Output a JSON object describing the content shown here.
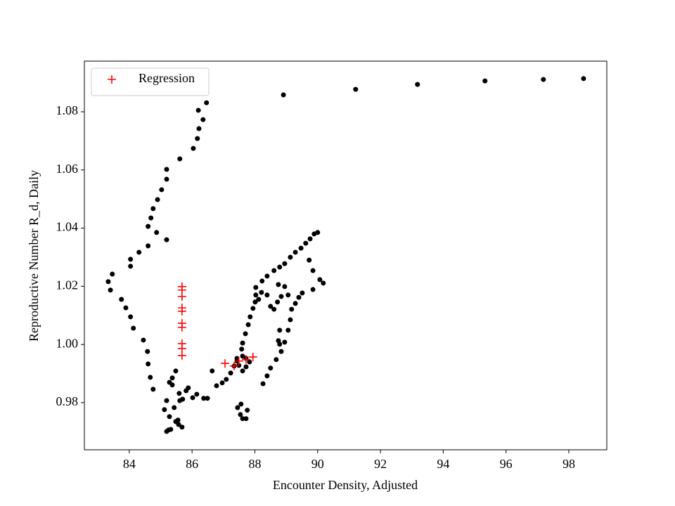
{
  "chart_data": {
    "type": "scatter",
    "xlabel": "Encounter Density, Adjusted",
    "ylabel": "Reproductive Number R_d, Daily",
    "xlim": [
      82.57,
      99.21
    ],
    "ylim": [
      0.9638,
      1.0974
    ],
    "xticks": [
      84,
      86,
      88,
      90,
      92,
      94,
      96,
      98
    ],
    "yticks": [
      0.98,
      {
        "value": 1,
        "label": "1.00"
      },
      1.02,
      1.04,
      1.06,
      1.08
    ],
    "legend": "upper left",
    "series": [
      {
        "color": "#000000",
        "marker": "dot",
        "x": [
          88.91,
          91.21,
          93.18,
          95.33,
          97.19,
          98.47,
          86.46,
          86.2,
          86.35,
          86.22,
          86.17,
          86.04,
          85.61,
          85.19,
          85.19,
          85.03,
          84.9,
          84.76,
          84.69,
          84.6,
          84.87,
          85.19,
          84.6,
          84.31,
          84.04,
          84.04,
          83.46,
          83.33,
          83.4,
          83.75,
          83.89,
          84.04,
          84.13,
          84.45,
          84.58,
          84.6,
          84.67,
          84.76,
          85.12,
          85.19,
          85.28,
          85.25,
          85.19,
          85.32,
          85.48,
          85.57,
          85.68,
          85.55,
          85.43,
          85.37,
          85.28,
          85.37,
          85.48,
          85.59,
          85.61,
          85.7,
          85.81,
          85.88,
          86.02,
          86.15,
          86.37,
          86.49,
          86.64,
          86.78,
          86.96,
          87.09,
          87.23,
          87.34,
          87.43,
          87.58,
          87.61,
          87.7,
          87.79,
          87.85,
          87.94,
          88.01,
          88.03,
          88.03,
          88.23,
          88.39,
          88.61,
          88.79,
          88.95,
          89.13,
          89.29,
          89.47,
          89.62,
          89.76,
          89.89,
          90.0,
          89.73,
          89.85,
          90.07,
          90.18,
          89.85,
          89.51,
          89.4,
          89.29,
          89.17,
          89.13,
          89.06,
          88.95,
          88.84,
          88.68,
          88.5,
          88.39,
          88.26,
          87.43,
          87.49,
          87.61,
          87.72,
          87.83,
          87.72,
          87.61,
          87.45,
          87.54,
          87.61,
          87.72,
          87.76,
          87.56,
          88.75,
          88.95,
          89.06,
          88.84,
          88.72,
          88.61,
          88.5,
          88.39,
          88.21,
          88.12,
          88.79,
          88.79,
          88.75
        ],
        "values": [
          1.0858,
          1.0877,
          1.0894,
          1.0906,
          1.0911,
          1.0914,
          1.0831,
          1.0805,
          1.0773,
          1.0742,
          1.0708,
          1.0674,
          1.0638,
          1.0602,
          1.0568,
          1.0532,
          1.0498,
          1.0467,
          1.0435,
          1.0406,
          1.0385,
          1.036,
          1.0339,
          1.0317,
          1.0293,
          1.0269,
          1.0242,
          1.0216,
          1.0187,
          1.0155,
          1.0126,
          1.0095,
          1.0056,
          1.0015,
          0.9976,
          0.9933,
          0.9887,
          0.9846,
          0.9776,
          0.9807,
          0.9752,
          0.9706,
          0.9701,
          0.9708,
          0.9735,
          0.9725,
          0.9716,
          0.974,
          0.9783,
          0.9861,
          0.987,
          0.9885,
          0.9909,
          0.9832,
          0.9807,
          0.9812,
          0.9841,
          0.9851,
          0.9817,
          0.9829,
          0.9815,
          0.9815,
          0.9909,
          0.9858,
          0.9868,
          0.988,
          0.9902,
          0.9926,
          0.9943,
          0.9984,
          1.0005,
          1.0037,
          1.0068,
          1.0095,
          1.0124,
          1.0146,
          1.017,
          1.0196,
          1.0218,
          1.0235,
          1.0254,
          1.0266,
          1.0278,
          1.03,
          1.0317,
          1.0331,
          1.0348,
          1.0363,
          1.038,
          1.0385,
          1.029,
          1.0254,
          1.0223,
          1.0211,
          1.0189,
          1.0177,
          1.0162,
          1.0141,
          1.0121,
          1.0085,
          1.0049,
          1.0008,
          0.9976,
          0.9948,
          0.9919,
          0.9892,
          0.9865,
          0.9952,
          0.9928,
          0.9909,
          0.9923,
          0.994,
          0.9952,
          0.996,
          0.9783,
          0.9759,
          0.9745,
          0.9745,
          0.9774,
          0.9795,
          1.0206,
          1.0199,
          1.017,
          1.0165,
          1.0146,
          1.0121,
          1.0131,
          1.017,
          1.0179,
          1.0155,
          1.0049,
          1.0001,
          1.0013
        ]
      },
      {
        "name": "Regression",
        "color": "#ff0000",
        "marker": "plus",
        "x": [
          85.68,
          85.68,
          85.68,
          85.68,
          85.68,
          85.68,
          85.68,
          85.68,
          85.68,
          85.68,
          87.05,
          87.34,
          87.49,
          87.72,
          87.94
        ],
        "values": [
          1.0199,
          1.0187,
          1.0165,
          1.0126,
          1.0114,
          1.0073,
          1.0059,
          1.0003,
          0.9986,
          0.9962,
          0.9935,
          0.9926,
          0.9943,
          0.9948,
          0.9957
        ]
      }
    ]
  }
}
